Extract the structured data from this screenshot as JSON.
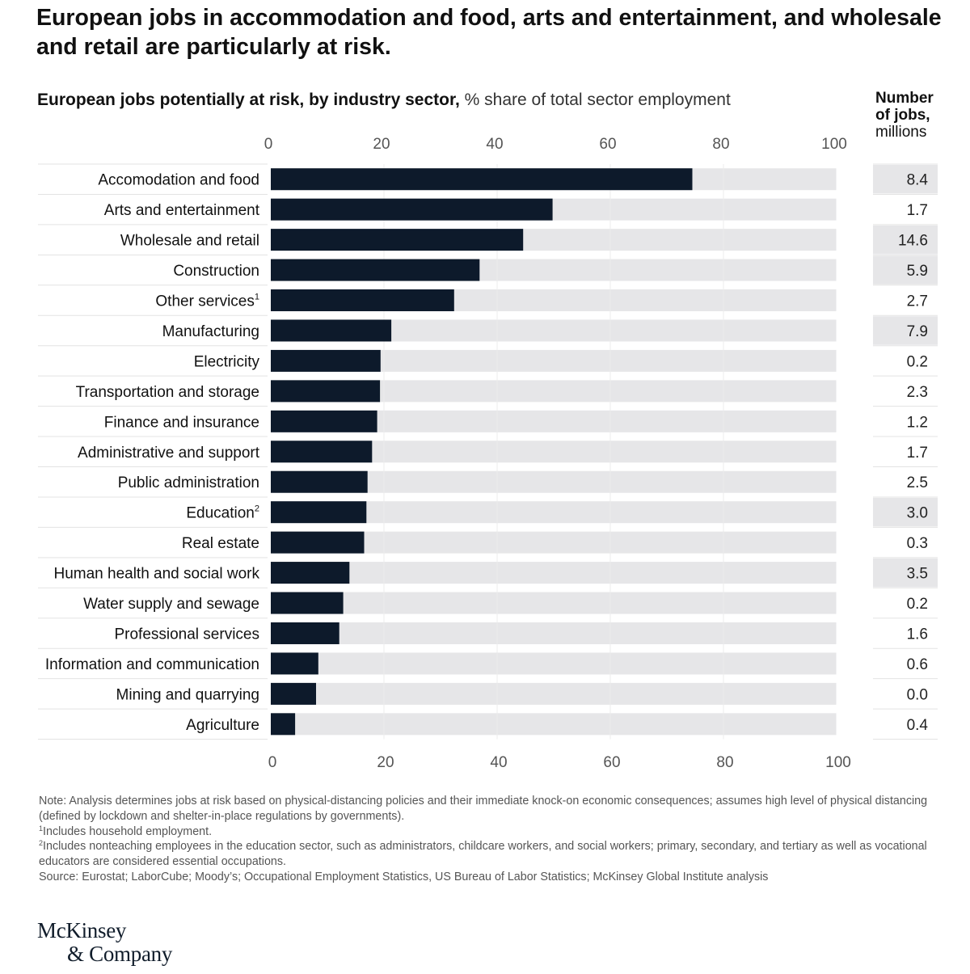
{
  "headline": "European jobs in accommodation and food, arts and entertainment, and wholesale and retail are particularly at risk.",
  "footnotes": {
    "note": "Note: Analysis determines jobs at risk based on physical-distancing policies and their immediate knock-on economic consequences; assumes high level of physical distancing (defined by lockdown and shelter-in-place regulations by governments).",
    "fn1_marker": "1",
    "fn1": "Includes household employment.",
    "fn2_marker": "2",
    "fn2": "Includes nonteaching employees in the education sector, such as administrators, childcare workers, and social workers; primary, secondary, and tertiary as well as vocational educators are considered essential occupations.",
    "source": "Source: Eurostat; LaborCube; Moody’s; Occupational Employment Statistics, US Bureau of Labor Statistics; McKinsey Global Institute analysis"
  },
  "logo": {
    "line1": "McKinsey",
    "line2": "& Company"
  },
  "colors": {
    "bar": "#0d1a2b",
    "track": "#e6e6e8",
    "highlight": "#e6e6e8",
    "grid": "#dcdcdc",
    "axis_text": "#555555",
    "divider": "#e3e3e3"
  },
  "chart_data": {
    "type": "bar",
    "orientation": "horizontal",
    "title": "European jobs potentially at risk, by industry sector,",
    "title_unit": "% share of total sector employment",
    "xlabel": "% share of total sector employment",
    "ylabel": "",
    "xlim": [
      0,
      100
    ],
    "xticks": [
      0,
      20,
      40,
      60,
      80,
      100
    ],
    "grid": true,
    "categories": [
      "Accomodation and food",
      "Arts and entertainment",
      "Wholesale and retail",
      "Construction",
      "Other services",
      "Manufacturing",
      "Electricity",
      "Transportation and storage",
      "Finance and insurance",
      "Administrative and support",
      "Public administration",
      "Education",
      "Real estate",
      "Human health and social work",
      "Water supply and sewage",
      "Professional services",
      "Information and communication",
      "Mining and quarrying",
      "Agriculture"
    ],
    "superscripts": [
      "",
      "",
      "",
      "",
      "1",
      "",
      "",
      "",
      "",
      "",
      "",
      "2",
      "",
      "",
      "",
      "",
      "",
      "",
      ""
    ],
    "values": [
      74.5,
      49.8,
      44.6,
      36.9,
      32.4,
      21.3,
      19.4,
      19.3,
      18.8,
      17.9,
      17.1,
      16.9,
      16.5,
      13.9,
      12.8,
      12.1,
      8.4,
      8.0,
      4.3
    ],
    "jobs_column": {
      "header": [
        "Number",
        "of jobs,",
        "millions"
      ],
      "values": [
        "8.4",
        "1.7",
        "14.6",
        "5.9",
        "2.7",
        "7.9",
        "0.2",
        "2.3",
        "1.2",
        "1.7",
        "2.5",
        "3.0",
        "0.3",
        "3.5",
        "0.2",
        "1.6",
        "0.6",
        "0.0",
        "0.4"
      ],
      "highlighted": [
        true,
        false,
        true,
        true,
        false,
        true,
        false,
        false,
        false,
        false,
        false,
        true,
        false,
        true,
        false,
        false,
        false,
        false,
        false
      ]
    }
  }
}
